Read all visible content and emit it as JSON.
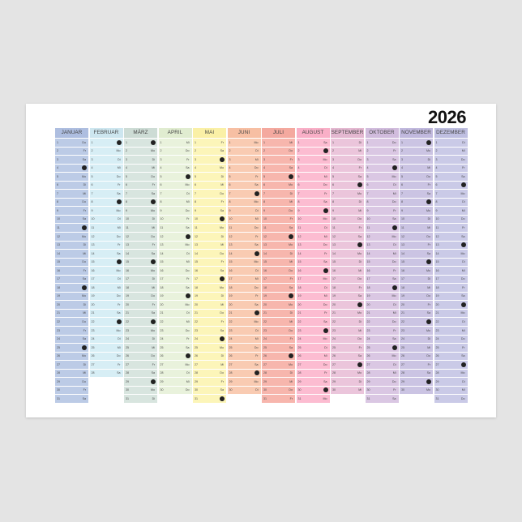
{
  "year": "2026",
  "weekdays": [
    "Mo",
    "Di",
    "Mi",
    "Do",
    "Fr",
    "Sa",
    "So"
  ],
  "first_weekday_index": 3,
  "sunday_marker_icon": "dark-circle-icon",
  "months": [
    {
      "name": "JANUAR",
      "days": 31,
      "color": "#bccbe6",
      "header": "#aebee0"
    },
    {
      "name": "FEBRUAR",
      "days": 28,
      "color": "#d7eef5",
      "header": "#cde6ef"
    },
    {
      "name": "MÄRZ",
      "days": 31,
      "color": "#d8e5df",
      "header": "#cddcd5"
    },
    {
      "name": "APRIL",
      "days": 30,
      "color": "#e9f2dc",
      "header": "#e0ecd0"
    },
    {
      "name": "MAI",
      "days": 31,
      "color": "#fcf5b9",
      "header": "#faf0a6"
    },
    {
      "name": "JUNI",
      "days": 30,
      "color": "#f9cbb2",
      "header": "#f7bfa3"
    },
    {
      "name": "JULI",
      "days": 31,
      "color": "#f7b6ad",
      "header": "#f4a99f"
    },
    {
      "name": "AUGUST",
      "days": 31,
      "color": "#fcbcd1",
      "header": "#f9afc7"
    },
    {
      "name": "SEPTEMBER",
      "days": 30,
      "color": "#ebc5db",
      "header": "#e4b8d1"
    },
    {
      "name": "OKTOBER",
      "days": 31,
      "color": "#dac7e3",
      "header": "#d1bcdd"
    },
    {
      "name": "NOVEMBER",
      "days": 30,
      "color": "#cbc4e3",
      "header": "#c1b9de"
    },
    {
      "name": "DEZEMBER",
      "days": 31,
      "color": "#cacae7",
      "header": "#bfbfe1"
    }
  ]
}
